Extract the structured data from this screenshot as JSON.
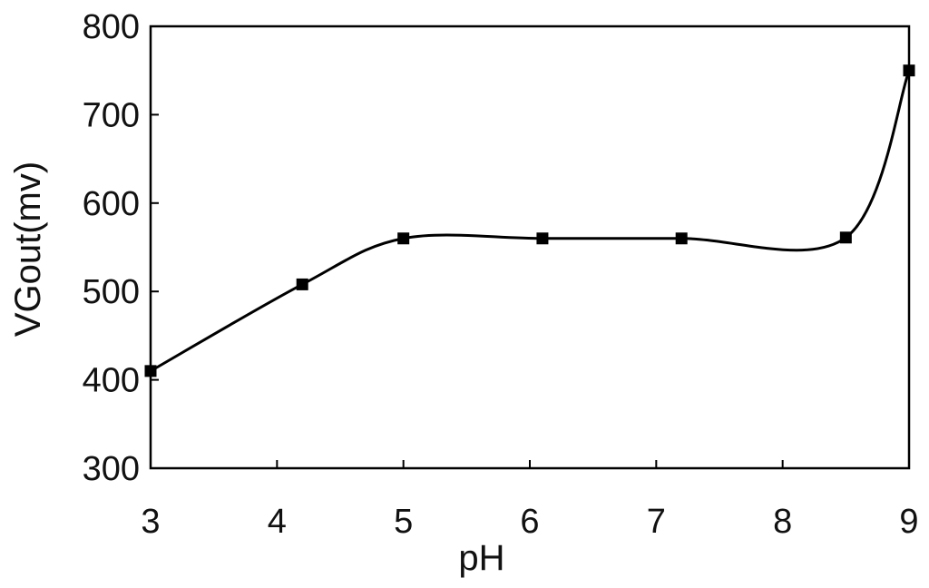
{
  "chart_data": {
    "type": "line",
    "title": "",
    "xlabel": "pH",
    "ylabel": "VGout(mv)",
    "xlim": [
      3,
      9
    ],
    "ylim": [
      300,
      800
    ],
    "x_ticks": [
      3,
      4,
      5,
      6,
      7,
      8,
      9
    ],
    "y_ticks": [
      300,
      400,
      500,
      600,
      700,
      800
    ],
    "grid": false,
    "legend": "none",
    "series": [
      {
        "x": [
          3.0,
          4.2,
          5.0,
          6.1,
          7.2,
          8.5,
          9.0
        ],
        "y": [
          410,
          508,
          560,
          560,
          560,
          561,
          750
        ],
        "marker": "square",
        "line_style": "smooth",
        "color": "#000000"
      }
    ]
  }
}
